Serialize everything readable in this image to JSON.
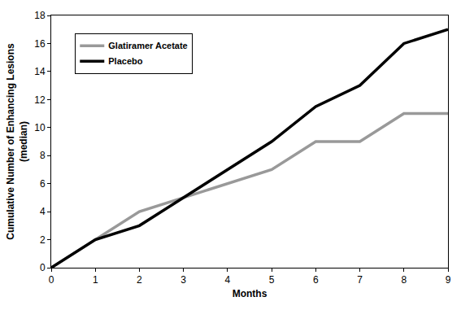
{
  "chart_data": {
    "type": "line",
    "x_label": "Months",
    "y_label": "Cumulative Number of Enhancing Lesions\n(median)",
    "x": [
      0,
      1,
      2,
      3,
      4,
      5,
      6,
      7,
      8,
      9
    ],
    "series": [
      {
        "name": "Glatiramer Acetate",
        "color": "#999999",
        "values": [
          0,
          2,
          4,
          5,
          6,
          7,
          9,
          9,
          11,
          11
        ]
      },
      {
        "name": "Placebo",
        "color": "#000000",
        "values": [
          0,
          2,
          3,
          5,
          7,
          9,
          11.5,
          13,
          16,
          17
        ]
      }
    ],
    "xlim": [
      0,
      9
    ],
    "xticks": [
      0,
      1,
      2,
      3,
      4,
      5,
      6,
      7,
      8,
      9
    ],
    "ylim": [
      0,
      18
    ],
    "yticks": [
      0,
      2,
      4,
      6,
      8,
      10,
      12,
      14,
      16,
      18
    ],
    "grid": false,
    "legend": "upper left"
  }
}
